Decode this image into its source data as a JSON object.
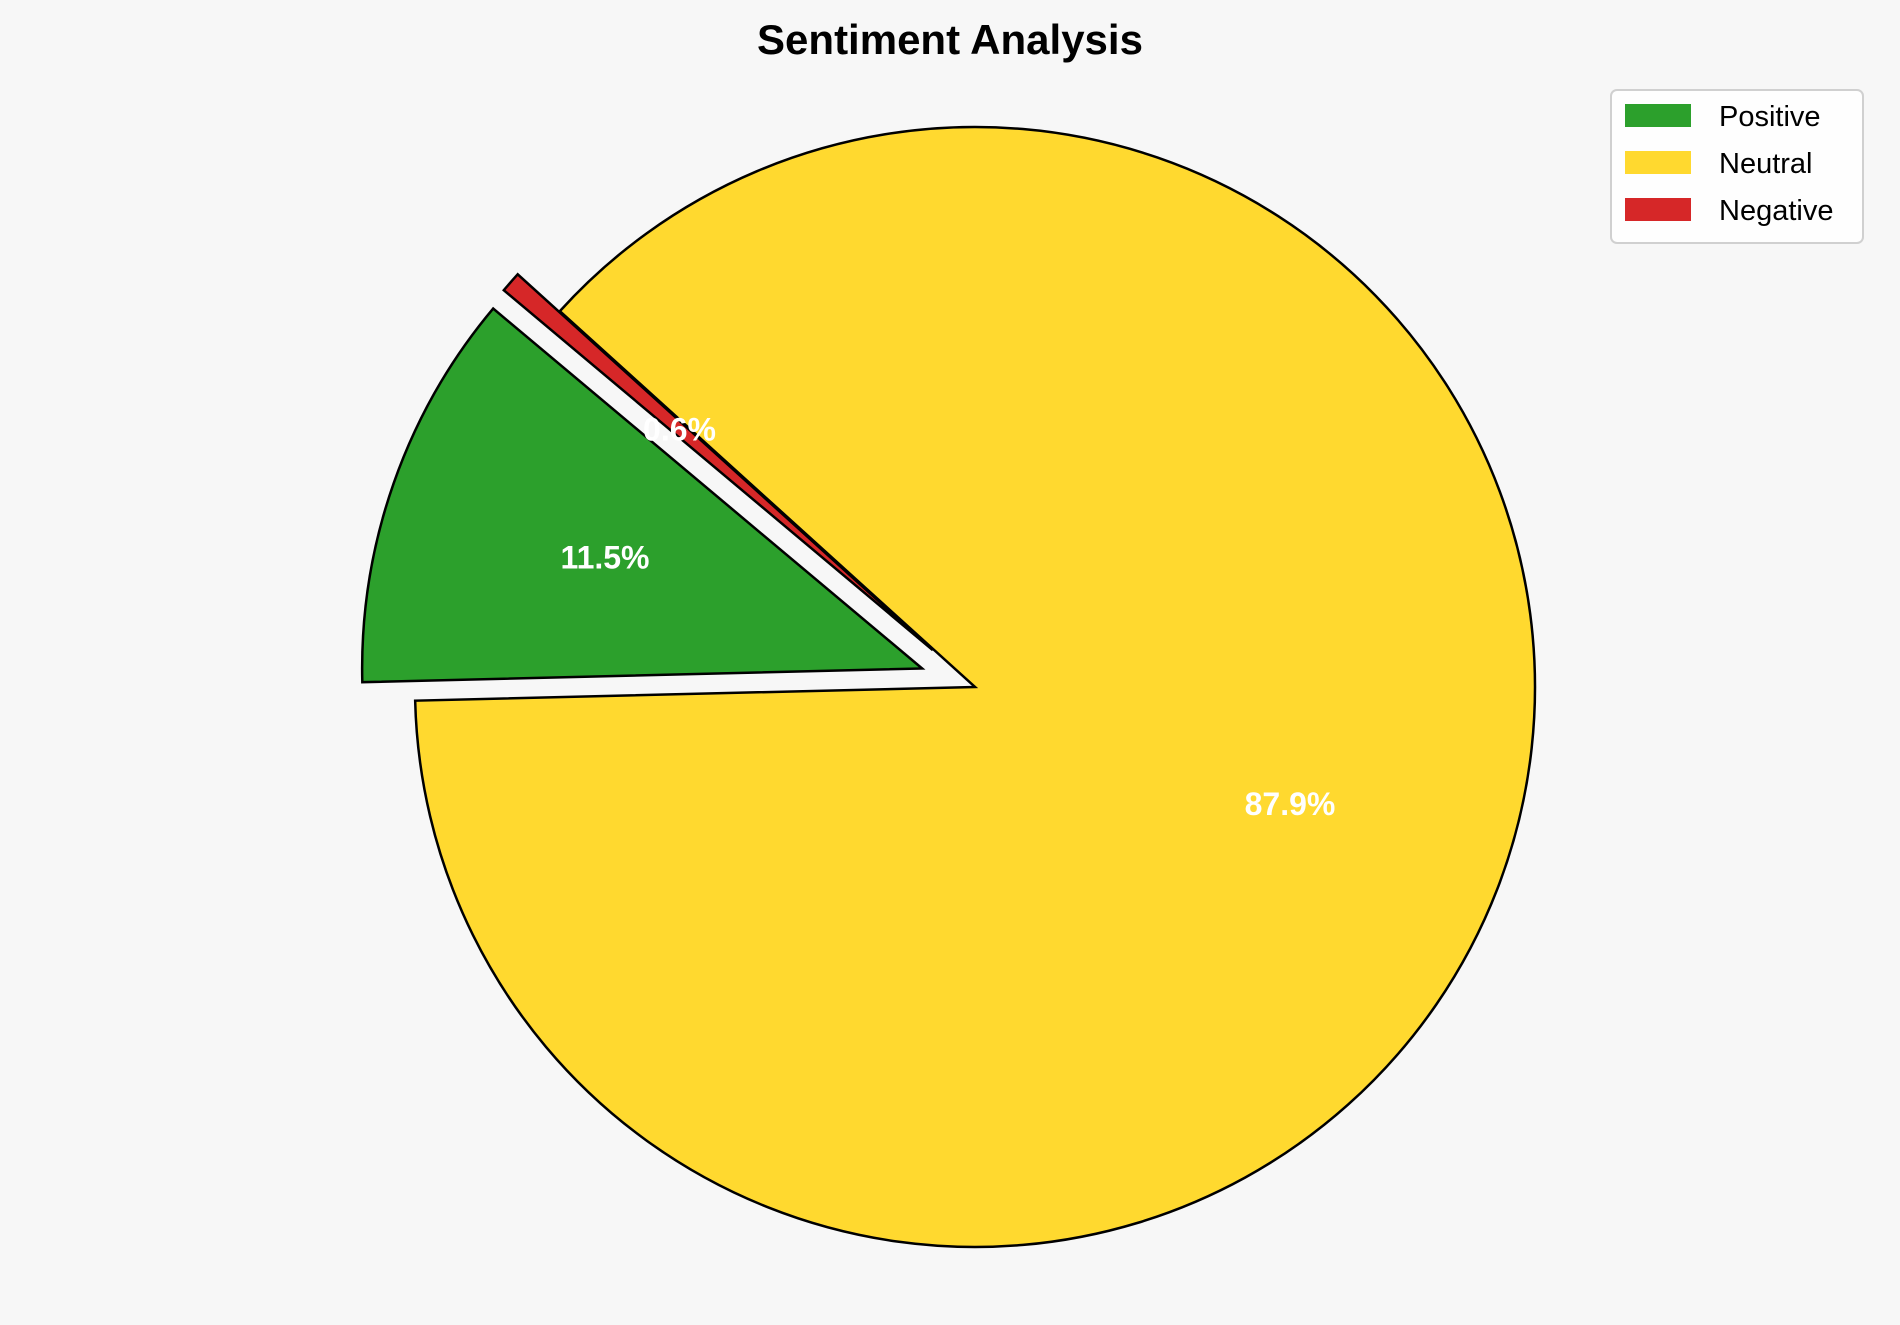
{
  "chart_data": {
    "type": "pie",
    "title": "Sentiment Analysis",
    "categories": [
      "Positive",
      "Neutral",
      "Negative"
    ],
    "values": [
      11.5,
      87.9,
      0.6
    ],
    "labels": [
      "11.5%",
      "87.9%",
      "0.6%"
    ],
    "colors": [
      "#2ca02c",
      "#ffd92f",
      "#d62728"
    ],
    "explode": [
      0.1,
      0,
      0.1
    ],
    "start_angle": 140,
    "direction": "counterclockwise",
    "legend_position": "top-right",
    "label_color": "#ffffff",
    "edge_color": "#000000",
    "background": "#f7f7f7"
  }
}
